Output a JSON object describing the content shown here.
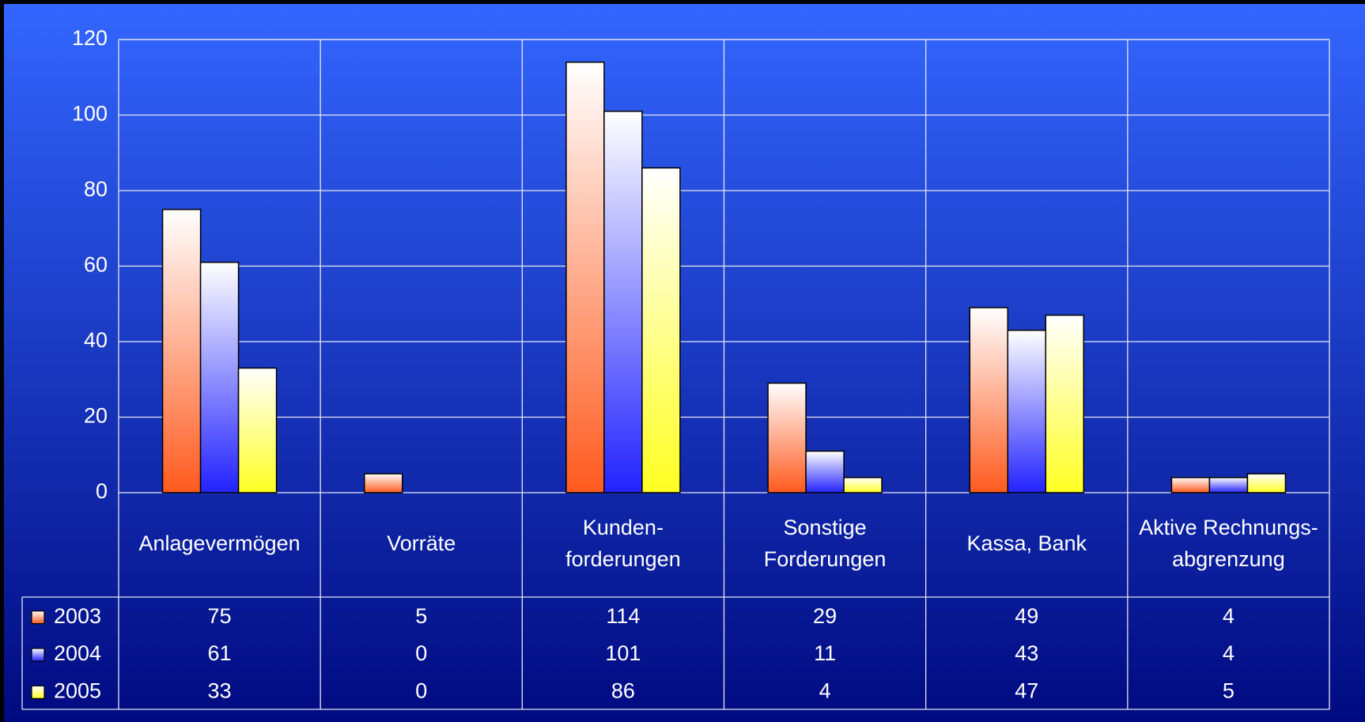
{
  "chart_data": {
    "type": "bar",
    "categories": [
      [
        "Anlagevermögen"
      ],
      [
        "Vorräte"
      ],
      [
        "Kunden-",
        "forderungen"
      ],
      [
        "Sonstige",
        "Forderungen"
      ],
      [
        "Kassa, Bank"
      ],
      [
        "Aktive Rechnungs-",
        "abgrenzung"
      ]
    ],
    "series": [
      {
        "name": "2003",
        "color": "#ff5a1e",
        "values": [
          75,
          5,
          114,
          29,
          49,
          4
        ]
      },
      {
        "name": "2004",
        "color": "#2222ff",
        "values": [
          61,
          0,
          101,
          11,
          43,
          4
        ]
      },
      {
        "name": "2005",
        "color": "#ffff22",
        "values": [
          33,
          0,
          86,
          4,
          47,
          5
        ]
      }
    ],
    "ylim": [
      0,
      120
    ],
    "yticks": [
      0,
      20,
      40,
      60,
      80,
      100,
      120
    ],
    "grid": true,
    "legend": "table"
  }
}
